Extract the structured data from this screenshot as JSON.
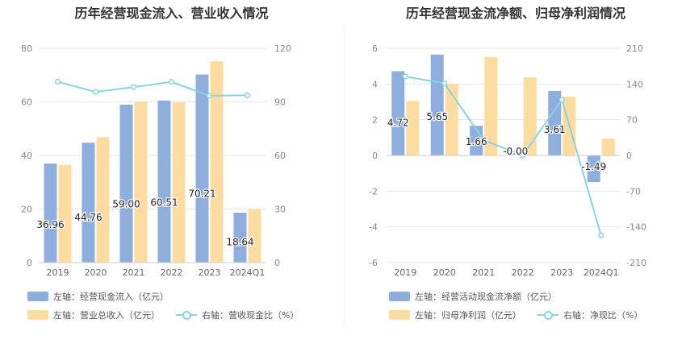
{
  "chart_data": [
    {
      "type": "bar",
      "title": "历年经营现金流入、营业收入情况",
      "categories": [
        "2019",
        "2020",
        "2021",
        "2022",
        "2023",
        "2024Q1"
      ],
      "y_left": {
        "ticks": [
          "0",
          "20",
          "40",
          "60",
          "80"
        ],
        "ylim": [
          0,
          80
        ]
      },
      "y_right": {
        "ticks": [
          "0",
          "30",
          "60",
          "90",
          "120"
        ],
        "ylim": [
          0,
          120
        ]
      },
      "series": [
        {
          "name": "左轴：经营现金流入（亿元）",
          "axis": "left",
          "type": "bar",
          "color": "#8eaedd",
          "values": [
            36.96,
            44.76,
            59.0,
            60.51,
            70.21,
            18.64
          ],
          "labels": [
            "36.96",
            "44.76",
            "59.00",
            "60.51",
            "70.21",
            "18.64"
          ]
        },
        {
          "name": "左轴：营业总收入（亿元）",
          "axis": "left",
          "type": "bar",
          "color": "#fedb9f",
          "values": [
            36.5,
            46.8,
            60.0,
            59.8,
            75.2,
            19.9
          ]
        },
        {
          "name": "右轴：营收现金比（%）",
          "axis": "right",
          "type": "line",
          "color": "#88d4de",
          "values": [
            101.3,
            95.6,
            98.3,
            101.2,
            93.4,
            93.7
          ]
        }
      ],
      "legend": [
        {
          "label": "左轴：经营现金流入（亿元）",
          "kind": "bar",
          "color": "#8eaedd"
        },
        {
          "label": "左轴：营业总收入（亿元）",
          "kind": "bar",
          "color": "#fedb9f"
        },
        {
          "label": "右轴：营收现金比（%）",
          "kind": "line",
          "color": "#88d4de"
        }
      ],
      "legend_position": "bottom"
    },
    {
      "type": "bar",
      "title": "历年经营现金流净额、归母净利润情况",
      "categories": [
        "2019",
        "2020",
        "2021",
        "2022",
        "2023",
        "2024Q1"
      ],
      "y_left": {
        "ticks": [
          "-6",
          "-4",
          "-2",
          "0",
          "2",
          "4",
          "6"
        ],
        "ylim": [
          -6,
          6
        ]
      },
      "y_right": {
        "ticks": [
          "-210",
          "-140",
          "-70",
          "0",
          "70",
          "140",
          "210"
        ],
        "ylim": [
          -210,
          210
        ]
      },
      "series": [
        {
          "name": "左轴：经营活动现金流净额（亿元）",
          "axis": "left",
          "type": "bar",
          "color": "#8eaedd",
          "values": [
            4.72,
            5.65,
            1.66,
            -0.0,
            3.61,
            -1.49
          ],
          "labels": [
            "4.72",
            "5.65",
            "1.66",
            "-0.00",
            "3.61",
            "-1.49"
          ]
        },
        {
          "name": "左轴：归母净利润（亿元）",
          "axis": "left",
          "type": "bar",
          "color": "#fedb9f",
          "values": [
            3.05,
            4.0,
            5.52,
            4.38,
            3.3,
            0.95
          ]
        },
        {
          "name": "右轴：净现比（%）",
          "axis": "right",
          "type": "line",
          "color": "#88d4de",
          "values": [
            154.8,
            141.3,
            30.1,
            -0.1,
            109.4,
            -156.8
          ]
        }
      ],
      "legend": [
        {
          "label": "左轴：经营活动现金流净额（亿元）",
          "kind": "bar",
          "color": "#8eaedd"
        },
        {
          "label": "左轴：归母净利润（亿元）",
          "kind": "bar",
          "color": "#fedb9f"
        },
        {
          "label": "右轴：净现比（%）",
          "kind": "line",
          "color": "#88d4de"
        }
      ],
      "legend_position": "bottom"
    }
  ]
}
